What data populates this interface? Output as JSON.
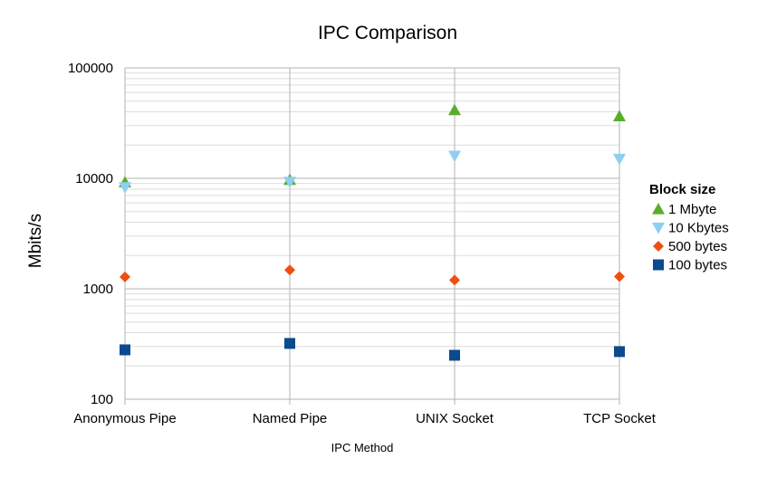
{
  "chart_data": {
    "type": "scatter",
    "title": "IPC Comparison",
    "xlabel": "IPC Method",
    "ylabel": "Mbits/s",
    "yscale": "log",
    "ylim": [
      100,
      100000
    ],
    "y_ticks": [
      "100",
      "1000",
      "10000",
      "100000"
    ],
    "categories": [
      "Anonymous Pipe",
      "Named Pipe",
      "UNIX Socket",
      "TCP Socket"
    ],
    "grid": true,
    "legend": {
      "title": "Block size",
      "position": "right"
    },
    "series": [
      {
        "name": "1 Mbyte",
        "marker": "triangle-up",
        "color": "#5aad2c",
        "values": [
          9200,
          9700,
          41500,
          36500
        ]
      },
      {
        "name": "10 Kbytes",
        "marker": "triangle-down",
        "color": "#8ecff3",
        "values": [
          8300,
          9300,
          16000,
          15000
        ]
      },
      {
        "name": "500 bytes",
        "marker": "diamond",
        "color": "#ef4f12",
        "values": [
          1280,
          1480,
          1200,
          1290
        ]
      },
      {
        "name": "100 bytes",
        "marker": "square",
        "color": "#0b4a8e",
        "values": [
          280,
          320,
          250,
          270
        ]
      }
    ]
  }
}
